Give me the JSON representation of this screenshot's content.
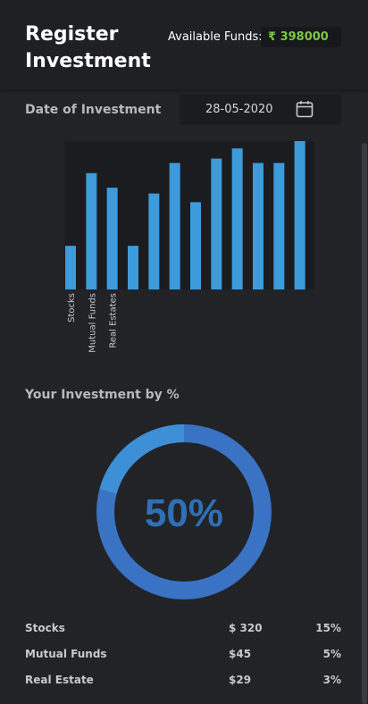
{
  "header": {
    "title": "Register Investment",
    "available_funds_label": "Available Funds:",
    "available_funds_value": "₹ 398000",
    "funds_color": "#7ac943"
  },
  "date": {
    "label": "Date of Investment",
    "value": "28-05-2020",
    "icon": "calendar-icon"
  },
  "chart_data": {
    "type": "bar",
    "categories": [
      "Stocks",
      "Mutual Funds",
      "Real Estates",
      "",
      "",
      "",
      "",
      "",
      "",
      "",
      "",
      ""
    ],
    "values": [
      30,
      80,
      70,
      30,
      66,
      87,
      60,
      90,
      97,
      87,
      87,
      102
    ],
    "title": "",
    "xlabel": "",
    "ylabel": "",
    "ylim": [
      0,
      102
    ],
    "grid": false,
    "color": "#3d9bdc"
  },
  "investment_by_percent": {
    "title": "Your Investment by %",
    "center_label": "50%",
    "center_color": "#2f6fb5",
    "ring_color_main": "#3a72c4",
    "ring_color_accent": "#3d8fd6"
  },
  "breakdown": [
    {
      "name": "Stocks",
      "amount": "$ 320",
      "percent": "15%"
    },
    {
      "name": "Mutual Funds",
      "amount": "$45",
      "percent": "5%"
    },
    {
      "name": "Real Estate",
      "amount": "$29",
      "percent": "3%"
    }
  ]
}
